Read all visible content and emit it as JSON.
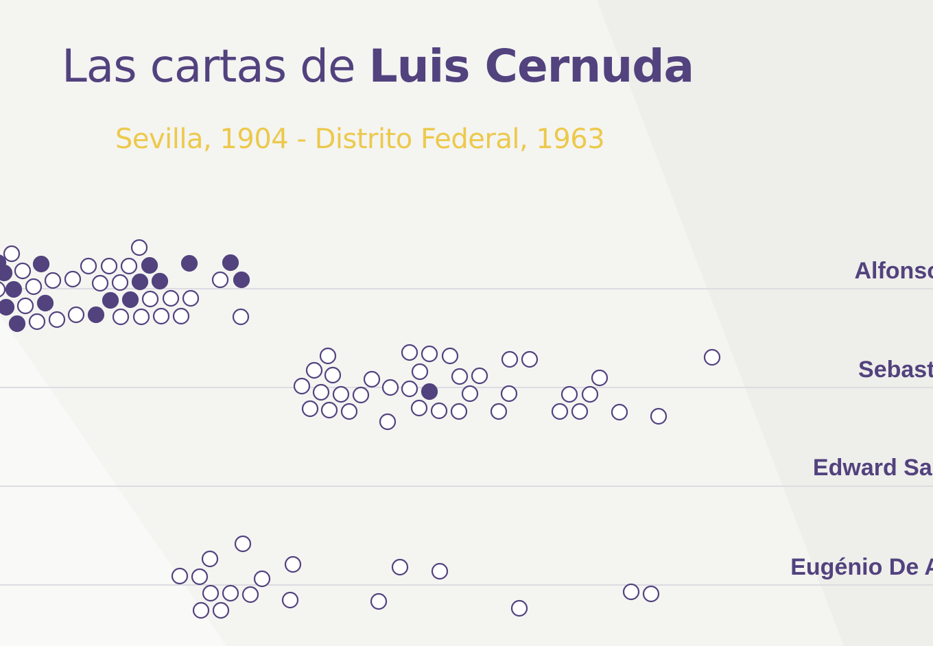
{
  "header": {
    "title_prefix": "Las cartas de ",
    "title_name": "Luis Cernuda",
    "subtitle": "Sevilla, 1904 - Distrito Federal, 1963"
  },
  "colors": {
    "accent": "#52427e",
    "subtitle": "#ecc94b",
    "background": "#f4f4f1",
    "gridline": "#dcdce2"
  },
  "chart_data": {
    "type": "scatter",
    "grid": true,
    "legend": "none",
    "series": [
      {
        "name": "Alfonso",
        "label": "Alfonso",
        "points": [
          [
            -3,
            383,
            1
          ],
          [
            17,
            370,
            0
          ],
          [
            6,
            398,
            1
          ],
          [
            33,
            395,
            0
          ],
          [
            60,
            385,
            1
          ],
          [
            20,
            422,
            1
          ],
          [
            49,
            418,
            0
          ],
          [
            77,
            409,
            0
          ],
          [
            106,
            407,
            0
          ],
          [
            129,
            388,
            0
          ],
          [
            159,
            388,
            0
          ],
          [
            188,
            388,
            0
          ],
          [
            203,
            361,
            0
          ],
          [
            218,
            387,
            1
          ],
          [
            146,
            413,
            0
          ],
          [
            175,
            412,
            0
          ],
          [
            204,
            411,
            1
          ],
          [
            233,
            410,
            1
          ],
          [
            276,
            384,
            1
          ],
          [
            336,
            383,
            1
          ],
          [
            321,
            408,
            0
          ],
          [
            352,
            408,
            1
          ],
          [
            9,
            448,
            1
          ],
          [
            37,
            446,
            0
          ],
          [
            66,
            442,
            1
          ],
          [
            161,
            438,
            1
          ],
          [
            190,
            437,
            1
          ],
          [
            219,
            436,
            0
          ],
          [
            249,
            435,
            0
          ],
          [
            278,
            435,
            0
          ],
          [
            25,
            472,
            1
          ],
          [
            54,
            469,
            0
          ],
          [
            83,
            466,
            0
          ],
          [
            111,
            459,
            0
          ],
          [
            140,
            459,
            1
          ],
          [
            176,
            462,
            0
          ],
          [
            206,
            462,
            0
          ],
          [
            235,
            461,
            0
          ],
          [
            264,
            461,
            0
          ],
          [
            351,
            462,
            0
          ],
          [
            -4,
            422,
            0
          ]
        ]
      },
      {
        "name": "Sebastián",
        "label": "Sebasti",
        "points": [
          [
            478,
            519,
            0
          ],
          [
            458,
            540,
            0
          ],
          [
            485,
            547,
            0
          ],
          [
            440,
            563,
            0
          ],
          [
            468,
            572,
            0
          ],
          [
            497,
            575,
            0
          ],
          [
            526,
            576,
            0
          ],
          [
            452,
            596,
            0
          ],
          [
            480,
            598,
            0
          ],
          [
            509,
            600,
            0
          ],
          [
            542,
            553,
            0
          ],
          [
            569,
            565,
            0
          ],
          [
            565,
            615,
            0
          ],
          [
            597,
            514,
            0
          ],
          [
            626,
            516,
            0
          ],
          [
            656,
            519,
            0
          ],
          [
            612,
            542,
            0
          ],
          [
            597,
            567,
            0
          ],
          [
            626,
            571,
            1
          ],
          [
            611,
            595,
            0
          ],
          [
            640,
            599,
            0
          ],
          [
            669,
            600,
            0
          ],
          [
            670,
            549,
            0
          ],
          [
            699,
            548,
            0
          ],
          [
            685,
            574,
            0
          ],
          [
            743,
            524,
            0
          ],
          [
            772,
            524,
            0
          ],
          [
            742,
            574,
            0
          ],
          [
            727,
            600,
            0
          ],
          [
            816,
            600,
            0
          ],
          [
            845,
            600,
            0
          ],
          [
            830,
            575,
            0
          ],
          [
            860,
            575,
            0
          ],
          [
            874,
            551,
            0
          ],
          [
            903,
            601,
            0
          ],
          [
            960,
            607,
            0
          ],
          [
            1038,
            521,
            0
          ]
        ]
      },
      {
        "name": "Edward Sar",
        "label": "Edward Sar",
        "points": []
      },
      {
        "name": "Eugénio De A",
        "label": "Eugénio De A",
        "points": [
          [
            354,
            793,
            0
          ],
          [
            306,
            815,
            0
          ],
          [
            262,
            840,
            0
          ],
          [
            291,
            841,
            0
          ],
          [
            382,
            844,
            0
          ],
          [
            427,
            823,
            0
          ],
          [
            307,
            865,
            0
          ],
          [
            336,
            865,
            0
          ],
          [
            365,
            867,
            0
          ],
          [
            293,
            890,
            0
          ],
          [
            322,
            890,
            0
          ],
          [
            423,
            875,
            0
          ],
          [
            552,
            877,
            0
          ],
          [
            583,
            827,
            0
          ],
          [
            641,
            833,
            0
          ],
          [
            757,
            887,
            0
          ],
          [
            920,
            863,
            0
          ],
          [
            949,
            866,
            0
          ]
        ]
      }
    ]
  }
}
